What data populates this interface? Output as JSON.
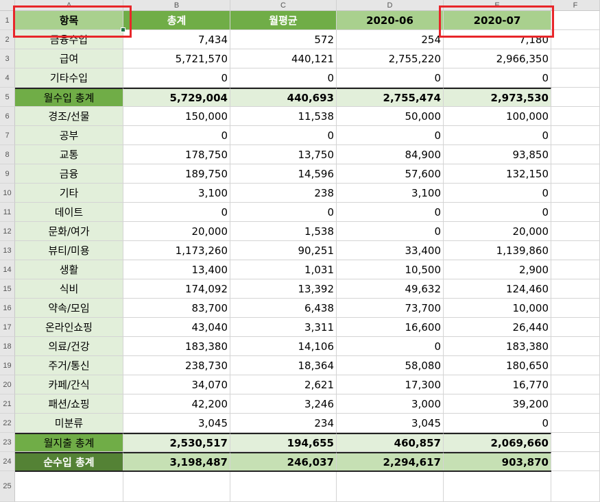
{
  "columns": [
    "A",
    "B",
    "C",
    "D",
    "E",
    "F"
  ],
  "header": [
    "항목",
    "총계",
    "월평균",
    "2020-06",
    "2020-07"
  ],
  "rows": [
    {
      "row": "2",
      "label": "금융수입",
      "values": [
        "7,434",
        "572",
        "254",
        "7,180"
      ],
      "kind": "item"
    },
    {
      "row": "3",
      "label": "급여",
      "values": [
        "5,721,570",
        "440,121",
        "2,755,220",
        "2,966,350"
      ],
      "kind": "item"
    },
    {
      "row": "4",
      "label": "기타수입",
      "values": [
        "0",
        "0",
        "0",
        "0"
      ],
      "kind": "item"
    },
    {
      "row": "5",
      "label": "월수입 총계",
      "values": [
        "5,729,004",
        "440,693",
        "2,755,474",
        "2,973,530"
      ],
      "kind": "subtotal"
    },
    {
      "row": "6",
      "label": "경조/선물",
      "values": [
        "150,000",
        "11,538",
        "50,000",
        "100,000"
      ],
      "kind": "item"
    },
    {
      "row": "7",
      "label": "공부",
      "values": [
        "0",
        "0",
        "0",
        "0"
      ],
      "kind": "item"
    },
    {
      "row": "8",
      "label": "교통",
      "values": [
        "178,750",
        "13,750",
        "84,900",
        "93,850"
      ],
      "kind": "item"
    },
    {
      "row": "9",
      "label": "금융",
      "values": [
        "189,750",
        "14,596",
        "57,600",
        "132,150"
      ],
      "kind": "item"
    },
    {
      "row": "10",
      "label": "기타",
      "values": [
        "3,100",
        "238",
        "3,100",
        "0"
      ],
      "kind": "item"
    },
    {
      "row": "11",
      "label": "데이트",
      "values": [
        "0",
        "0",
        "0",
        "0"
      ],
      "kind": "item"
    },
    {
      "row": "12",
      "label": "문화/여가",
      "values": [
        "20,000",
        "1,538",
        "0",
        "20,000"
      ],
      "kind": "item"
    },
    {
      "row": "13",
      "label": "뷰티/미용",
      "values": [
        "1,173,260",
        "90,251",
        "33,400",
        "1,139,860"
      ],
      "kind": "item"
    },
    {
      "row": "14",
      "label": "생활",
      "values": [
        "13,400",
        "1,031",
        "10,500",
        "2,900"
      ],
      "kind": "item"
    },
    {
      "row": "15",
      "label": "식비",
      "values": [
        "174,092",
        "13,392",
        "49,632",
        "124,460"
      ],
      "kind": "item"
    },
    {
      "row": "16",
      "label": "약속/모임",
      "values": [
        "83,700",
        "6,438",
        "73,700",
        "10,000"
      ],
      "kind": "item"
    },
    {
      "row": "17",
      "label": "온라인쇼핑",
      "values": [
        "43,040",
        "3,311",
        "16,600",
        "26,440"
      ],
      "kind": "item"
    },
    {
      "row": "18",
      "label": "의료/건강",
      "values": [
        "183,380",
        "14,106",
        "0",
        "183,380"
      ],
      "kind": "item"
    },
    {
      "row": "19",
      "label": "주거/통신",
      "values": [
        "238,730",
        "18,364",
        "58,080",
        "180,650"
      ],
      "kind": "item"
    },
    {
      "row": "20",
      "label": "카페/간식",
      "values": [
        "34,070",
        "2,621",
        "17,300",
        "16,770"
      ],
      "kind": "item"
    },
    {
      "row": "21",
      "label": "패션/쇼핑",
      "values": [
        "42,200",
        "3,246",
        "3,000",
        "39,200"
      ],
      "kind": "item"
    },
    {
      "row": "22",
      "label": "미분류",
      "values": [
        "3,045",
        "234",
        "3,045",
        "0"
      ],
      "kind": "item"
    },
    {
      "row": "23",
      "label": "월지출 총계",
      "values": [
        "2,530,517",
        "194,655",
        "460,857",
        "2,069,660"
      ],
      "kind": "subtotal"
    },
    {
      "row": "24",
      "label": "순수입 총계",
      "values": [
        "3,198,487",
        "246,037",
        "2,294,617",
        "903,870"
      ],
      "kind": "net"
    }
  ],
  "empty_rows": [
    "25"
  ],
  "header_row": "1",
  "colors": {
    "header_green": "#70ad47",
    "header_light_green": "#a9d08e",
    "item_bg": "#e2efda",
    "net_label_bg": "#548235",
    "net_bg": "#c6e0b4",
    "highlight_red": "#e8262a"
  }
}
